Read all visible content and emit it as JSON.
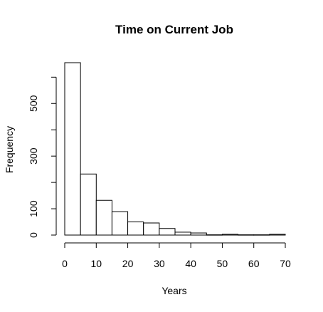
{
  "chart_data": {
    "type": "histogram",
    "title": "Time on Current Job",
    "xlabel": "Years",
    "ylabel": "Frequency",
    "bin_width": 5,
    "bins": [
      {
        "start": 0,
        "end": 5,
        "count": 655
      },
      {
        "start": 5,
        "end": 10,
        "count": 232
      },
      {
        "start": 10,
        "end": 15,
        "count": 132
      },
      {
        "start": 15,
        "end": 20,
        "count": 89
      },
      {
        "start": 20,
        "end": 25,
        "count": 50
      },
      {
        "start": 25,
        "end": 30,
        "count": 46
      },
      {
        "start": 30,
        "end": 35,
        "count": 25
      },
      {
        "start": 35,
        "end": 40,
        "count": 11
      },
      {
        "start": 40,
        "end": 45,
        "count": 8
      },
      {
        "start": 45,
        "end": 50,
        "count": 1
      },
      {
        "start": 50,
        "end": 55,
        "count": 3
      },
      {
        "start": 55,
        "end": 60,
        "count": 1
      },
      {
        "start": 60,
        "end": 65,
        "count": 1
      },
      {
        "start": 65,
        "end": 70,
        "count": 3
      }
    ],
    "xlim": [
      0,
      70
    ],
    "ylim": [
      0,
      655
    ],
    "x_ticks": [
      0,
      10,
      20,
      30,
      40,
      50,
      60,
      70
    ],
    "y_ticks_major": [
      0,
      100,
      300,
      500
    ],
    "y_ticks_minor": [
      200,
      400,
      600
    ],
    "grid": false,
    "legend": "none"
  }
}
